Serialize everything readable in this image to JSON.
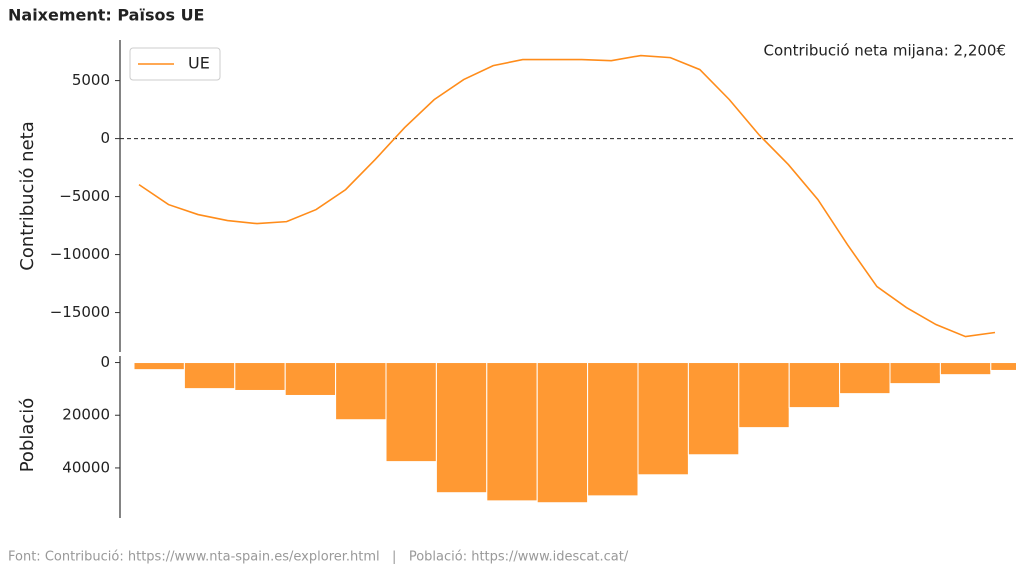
{
  "title": "Naixement: Països UE",
  "footer": "Font: Contribució: https://www.nta-spain.es/explorer.html   |   Població: https://www.idescat.cat/",
  "chart_data": [
    {
      "type": "line",
      "ylabel": "Contribució neta",
      "annotation": "Contribució neta mijana: 2,200€",
      "categories": [
        null,
        null,
        null,
        null,
        null,
        null,
        null,
        null,
        null,
        null,
        null,
        null,
        null,
        null,
        null,
        null,
        null,
        null,
        null,
        null,
        null,
        null,
        null,
        null,
        null,
        null,
        null,
        null,
        null,
        null
      ],
      "series": [
        {
          "name": "UE",
          "color": "#ff8c1a",
          "values": [
            -3970,
            -5690,
            -6550,
            -7070,
            -7330,
            -7160,
            -6120,
            -4400,
            -1810,
            950,
            3360,
            5090,
            6290,
            6810,
            6810,
            6810,
            6720,
            7160,
            6980,
            5950,
            3360,
            340,
            -2240,
            -5260,
            -9140,
            -12760,
            -14570,
            -16030,
            -17070,
            -16720
          ]
        }
      ],
      "ylim": [
        -18400,
        8500
      ],
      "yticks": [
        {
          "value": -15000,
          "label": "−15000"
        },
        {
          "value": -10000,
          "label": "−10000"
        },
        {
          "value": -5000,
          "label": "−5000"
        },
        0,
        5000
      ],
      "hline": 0,
      "legend": "upper left"
    },
    {
      "type": "bar",
      "ylabel": "Població",
      "categories": [
        null,
        null,
        null,
        null,
        null,
        null,
        null,
        null,
        null,
        null,
        null,
        null,
        null,
        null,
        null,
        null,
        null,
        null
      ],
      "values": [
        2700,
        9900,
        10600,
        12500,
        21700,
        37600,
        49400,
        52500,
        53200,
        50600,
        42600,
        35000,
        24700,
        17100,
        11800,
        8000,
        4600,
        3000
      ],
      "color": "#ff9933",
      "ylim": [
        -4000,
        59000
      ],
      "inverted": true,
      "yticks": [
        0,
        20000,
        40000
      ]
    }
  ]
}
